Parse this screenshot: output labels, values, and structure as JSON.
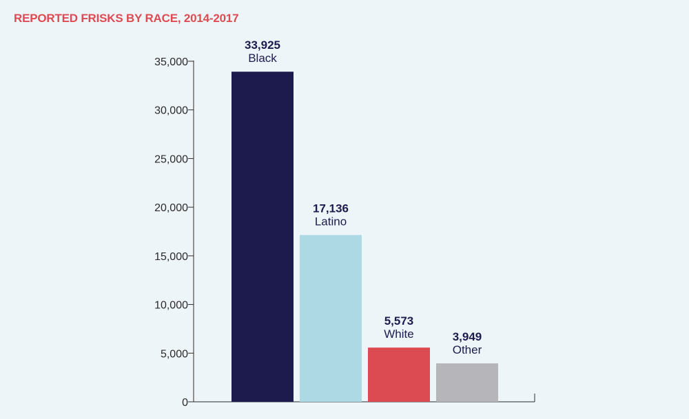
{
  "chart_data": {
    "type": "bar",
    "title": "REPORTED FRISKS BY RACE, 2014-2017",
    "xlabel": "",
    "ylabel": "",
    "ylim": [
      0,
      35000
    ],
    "yticks": [
      0,
      5000,
      10000,
      15000,
      20000,
      25000,
      30000,
      35000
    ],
    "ytick_labels": [
      "0",
      "5,000",
      "10,000",
      "15,000",
      "20,000",
      "25,000",
      "30,000",
      "35,000"
    ],
    "grid": false,
    "categories": [
      "Black",
      "Latino",
      "White",
      "Other"
    ],
    "values": [
      33925,
      17136,
      5573,
      3949
    ],
    "value_labels": [
      "33,925",
      "17,136",
      "5,573",
      "3,949"
    ],
    "colors": [
      "#1d1a4e",
      "#acd9e3",
      "#dd4b52",
      "#b6b6ba"
    ]
  },
  "colors": {
    "background": "#eef5f8",
    "title": "#dd4b52",
    "label_text": "#1d1a4e",
    "axis": "#2a2a2a",
    "tick_text": "#2a2a2a"
  }
}
